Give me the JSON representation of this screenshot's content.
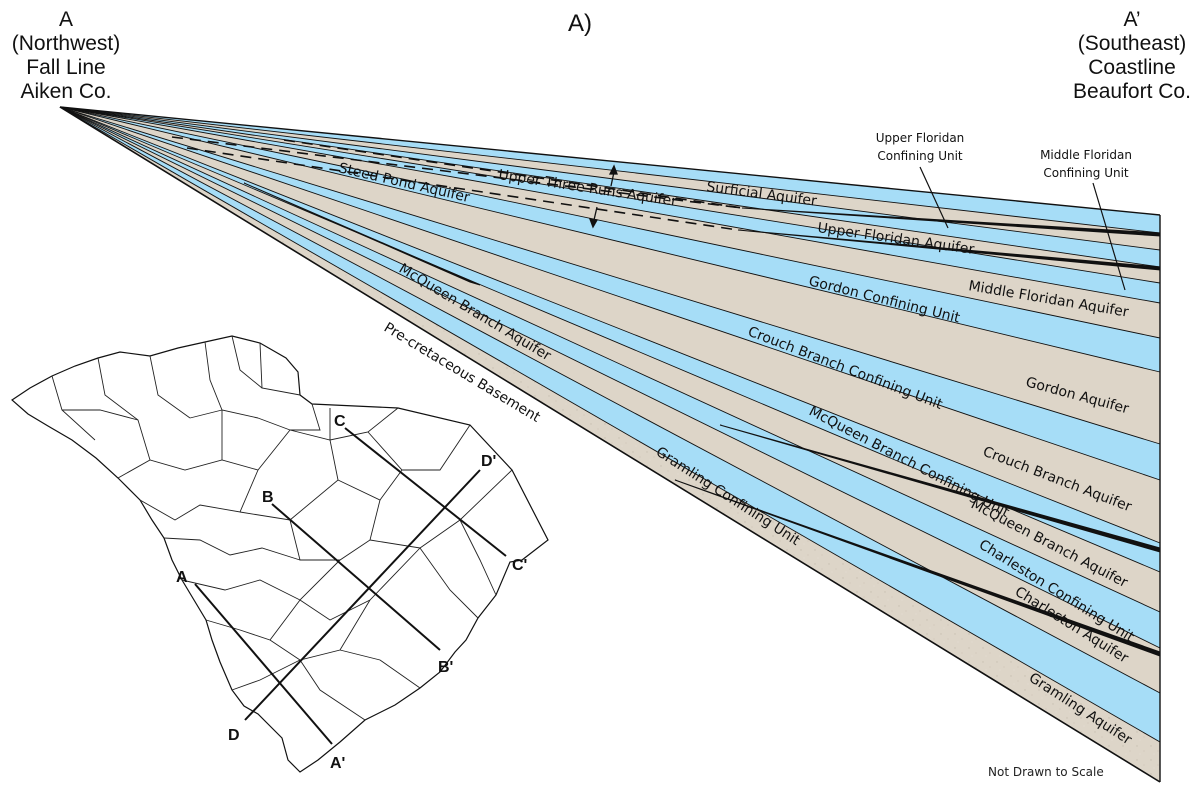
{
  "panel_label": "A)",
  "left_end": {
    "letter": "A",
    "lines": [
      "(Northwest)",
      "Fall Line",
      "Aiken Co."
    ]
  },
  "right_end": {
    "letter": "A’",
    "lines": [
      "(Southeast)",
      "Coastline",
      "Beaufort Co."
    ]
  },
  "units": [
    {
      "name": "Surficial Aquifer",
      "kind": "aquifer"
    },
    {
      "name": "Upper Floridan Confining Unit",
      "kind": "confining"
    },
    {
      "name": "Upper Floridan Aquifer",
      "kind": "aquifer"
    },
    {
      "name": "Middle Floridan Confining Unit",
      "kind": "confining"
    },
    {
      "name": "Middle Floridan Aquifer",
      "kind": "aquifer"
    },
    {
      "name": "Gordon Confining Unit",
      "kind": "confining"
    },
    {
      "name": "Gordon Aquifer",
      "kind": "aquifer"
    },
    {
      "name": "Crouch Branch Confining Unit",
      "kind": "confining"
    },
    {
      "name": "Crouch Branch Aquifer",
      "kind": "aquifer"
    },
    {
      "name": "McQueen Branch Confining Unit",
      "kind": "confining"
    },
    {
      "name": "McQueen Branch Aquifer",
      "kind": "aquifer"
    },
    {
      "name": "Charleston Confining Unit",
      "kind": "confining"
    },
    {
      "name": "Charleston Aquifer",
      "kind": "aquifer"
    },
    {
      "name": "Gramling Confining Unit",
      "kind": "confining"
    },
    {
      "name": "Gramling Aquifer",
      "kind": "aquifer"
    }
  ],
  "updip_labels": {
    "upper_three_runs": "Upper Three Runs Aquifer",
    "steed_pond": "Steed Pond Aquifer",
    "basement": "Pre-cretaceous Basement"
  },
  "callouts": {
    "upper_floridan_cu": [
      "Upper Floridan",
      "Confining Unit"
    ],
    "middle_floridan_cu": [
      "Middle Floridan",
      "Confining Unit"
    ]
  },
  "map": {
    "section_lines": [
      {
        "start": "A",
        "end": "A'"
      },
      {
        "start": "B",
        "end": "B'"
      },
      {
        "start": "C",
        "end": "C'"
      },
      {
        "start": "D",
        "end": "D'"
      }
    ]
  },
  "note": "Not Drawn to Scale",
  "colors": {
    "aquifer": "#a6ddf7",
    "confining": "#ddd5c8",
    "outline": "#111111"
  }
}
